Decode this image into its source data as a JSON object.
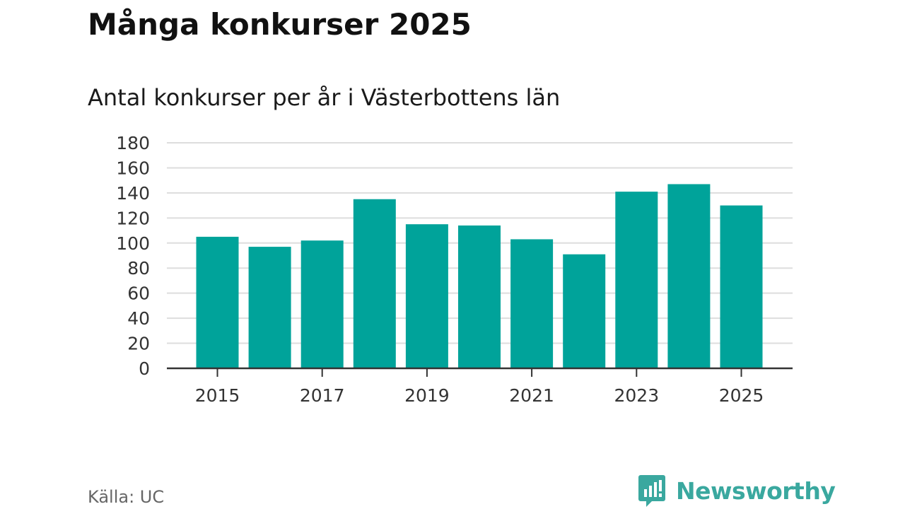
{
  "title": "Många konkurser 2025",
  "subtitle": "Antal konkurser per år i Västerbottens län",
  "source": "Källa: UC",
  "brand": {
    "name": "Newsworthy",
    "icon": "newsworthy-logo-icon",
    "color": "#3aa89f"
  },
  "colors": {
    "bar": "#00a39a",
    "grid": "#dddddd",
    "axis": "#333333",
    "text": "#333333"
  },
  "chart_data": {
    "type": "bar",
    "title": "Många konkurser 2025",
    "subtitle": "Antal konkurser per år i Västerbottens län",
    "xlabel": "",
    "ylabel": "",
    "categories": [
      "2015",
      "2016",
      "2017",
      "2018",
      "2019",
      "2020",
      "2021",
      "2022",
      "2023",
      "2024",
      "2025"
    ],
    "values": [
      105,
      97,
      102,
      135,
      115,
      114,
      103,
      91,
      141,
      147,
      130
    ],
    "x_tick_labels": [
      "2015",
      "2017",
      "2019",
      "2021",
      "2023",
      "2025"
    ],
    "y_ticks": [
      0,
      20,
      40,
      60,
      80,
      100,
      120,
      140,
      160,
      180
    ],
    "ylim": [
      0,
      180
    ],
    "grid": true,
    "legend": "none"
  }
}
